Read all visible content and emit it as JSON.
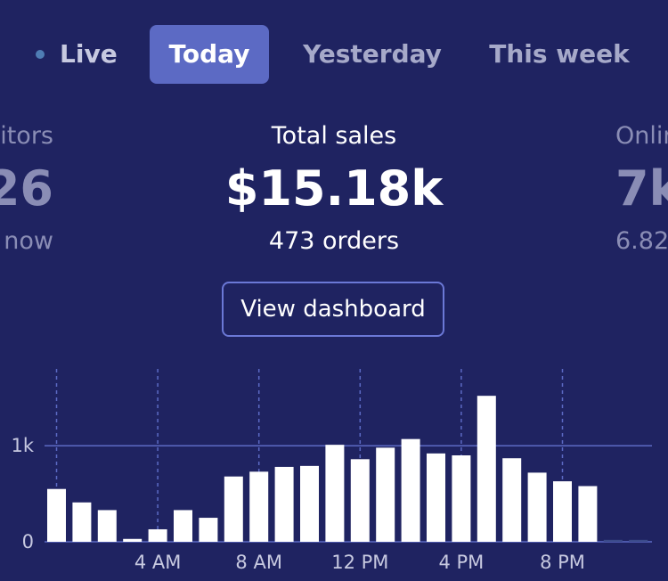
{
  "tabs": {
    "live": "Live",
    "today": "Today",
    "yesterday": "Yesterday",
    "this_week": "This week"
  },
  "metrics": {
    "left": {
      "label": "itors",
      "value": "26",
      "sub": "now"
    },
    "center": {
      "label": "Total sales",
      "value": "$15.18k",
      "sub": "473 orders"
    },
    "right": {
      "label": "Onlin",
      "value": "7k",
      "sub": "6.82"
    }
  },
  "button": {
    "label": "View dashboard"
  },
  "colors": {
    "background": "#1f2361",
    "accent": "#5c6ac4",
    "bar": "#ffffff",
    "empty_bar": "#3b4b8a",
    "gridline": "#5c6ac4",
    "muted_text": "#8a8db5"
  },
  "chart_data": {
    "type": "bar",
    "x_tick_labels": [
      "4 AM",
      "8 AM",
      "12 PM",
      "4 PM",
      "8 PM"
    ],
    "y_tick_labels": [
      "0",
      "1k"
    ],
    "ylim": [
      0,
      1800
    ],
    "hours": [
      "12 AM",
      "1 AM",
      "2 AM",
      "3 AM",
      "4 AM",
      "5 AM",
      "6 AM",
      "7 AM",
      "8 AM",
      "9 AM",
      "10 AM",
      "11 AM",
      "12 PM",
      "1 PM",
      "2 PM",
      "3 PM",
      "4 PM",
      "5 PM",
      "6 PM",
      "7 PM",
      "8 PM",
      "9 PM",
      "10 PM",
      "11 PM"
    ],
    "values": [
      550,
      410,
      330,
      30,
      130,
      330,
      250,
      680,
      730,
      780,
      790,
      1010,
      860,
      980,
      1070,
      920,
      900,
      1520,
      870,
      720,
      630,
      580,
      20,
      20
    ],
    "pending_hours": [
      22,
      23
    ],
    "grid": true
  }
}
